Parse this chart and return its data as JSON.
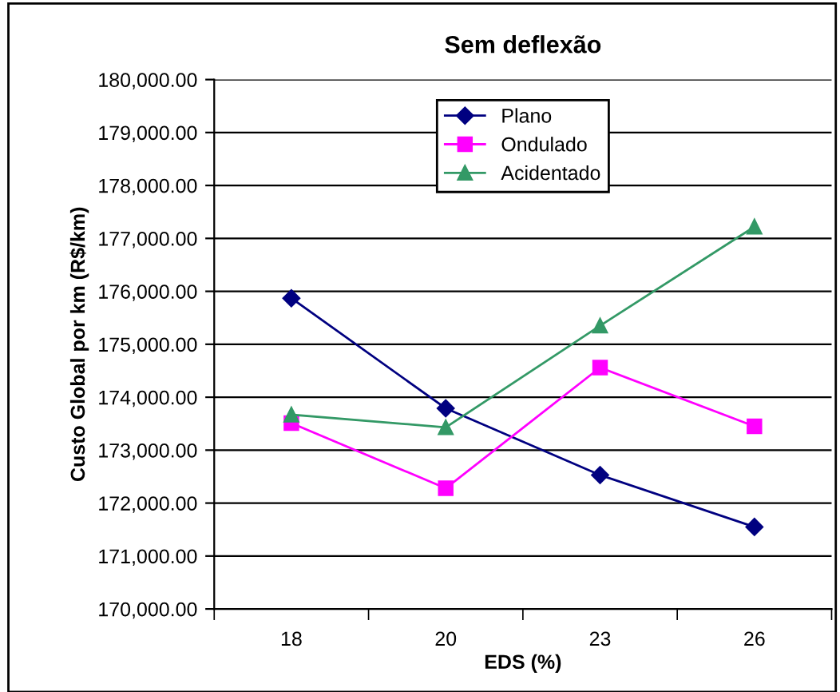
{
  "chart_data": {
    "type": "line",
    "title": "Sem deflexão",
    "xlabel": "EDS (%)",
    "ylabel": "Custo Global por km (R$/km)",
    "categories": [
      "18",
      "20",
      "23",
      "26"
    ],
    "series": [
      {
        "name": "Plano",
        "color": "#000080",
        "marker": "diamond",
        "values": [
          175870,
          173790,
          172530,
          171550
        ]
      },
      {
        "name": "Ondulado",
        "color": "#ff00ff",
        "marker": "square",
        "values": [
          173510,
          172280,
          174560,
          173450
        ]
      },
      {
        "name": "Acidentado",
        "color": "#339966",
        "marker": "triangle",
        "values": [
          173670,
          173430,
          175350,
          177220
        ]
      }
    ],
    "ylim": [
      170000,
      180000
    ],
    "yticks": [
      {
        "value": 170000,
        "label": "170,000.00"
      },
      {
        "value": 171000,
        "label": "171,000.00"
      },
      {
        "value": 172000,
        "label": "172,000.00"
      },
      {
        "value": 173000,
        "label": "173,000.00"
      },
      {
        "value": 174000,
        "label": "174,000.00"
      },
      {
        "value": 175000,
        "label": "175,000.00"
      },
      {
        "value": 176000,
        "label": "176,000.00"
      },
      {
        "value": 177000,
        "label": "177,000.00"
      },
      {
        "value": 178000,
        "label": "178,000.00"
      },
      {
        "value": 179000,
        "label": "179,000.00"
      },
      {
        "value": 180000,
        "label": "180,000.00"
      }
    ],
    "grid": "y",
    "legend": "top",
    "line_style": "solid"
  }
}
